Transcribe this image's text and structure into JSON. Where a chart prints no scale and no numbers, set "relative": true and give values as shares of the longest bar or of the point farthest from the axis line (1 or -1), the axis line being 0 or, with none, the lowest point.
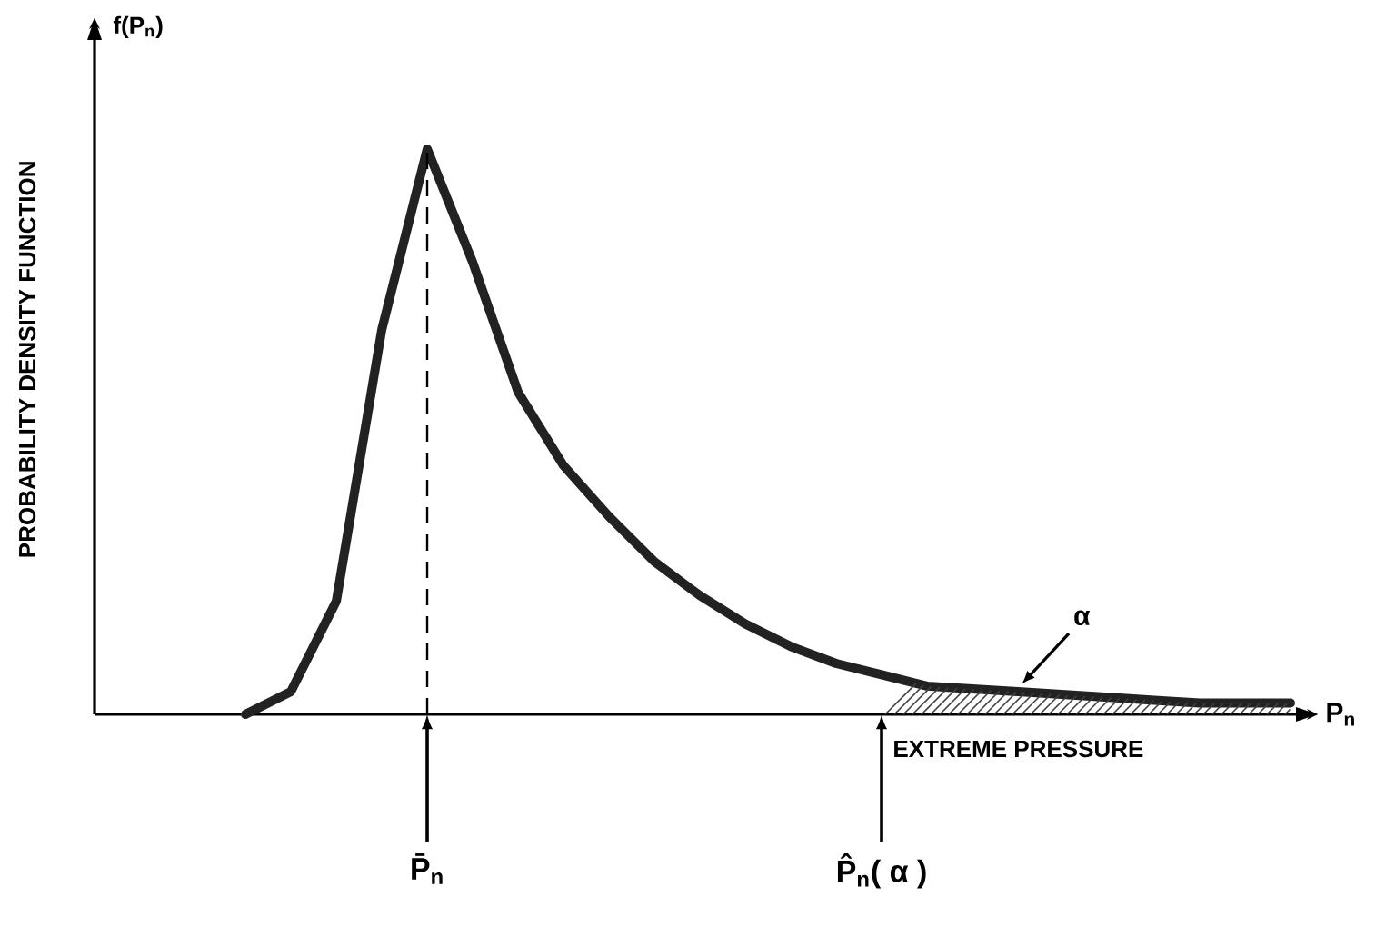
{
  "chart_data": {
    "type": "line",
    "relative": true,
    "xlabel": "P$_{n}$",
    "categories": [
      null,
      null,
      null,
      null,
      null,
      null,
      null,
      null,
      null,
      null,
      null,
      null,
      null,
      null,
      null,
      null,
      null,
      null,
      null,
      null,
      null,
      null,
      null,
      null
    ],
    "series": [
      {
        "color": "#222222",
        "values": [
          0,
          0.04,
          0.2,
          0.68,
          1.0,
          0.8,
          0.57,
          0.44,
          0.35,
          0.27,
          0.21,
          0.16,
          0.12,
          0.09,
          0.07,
          0.05,
          0.045,
          0.04,
          0.035,
          0.03,
          0.025,
          0.02,
          0.02,
          0.02
        ]
      }
    ],
    "annotations": [
      "f(P$_{n}$)",
      "EXTREME PRESSURE",
      "P̄$_{n}$",
      "P̂$_{n}$( α )",
      "α",
      "PROBABILITY DENSITY FUNCTION"
    ]
  }
}
